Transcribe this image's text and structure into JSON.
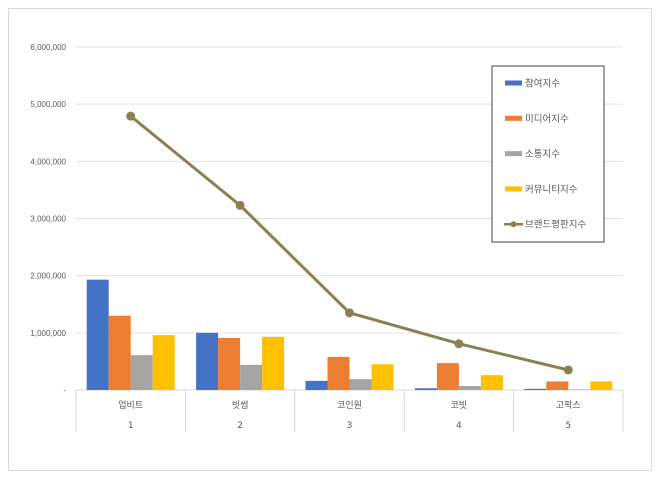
{
  "chart_data": {
    "type": "bar",
    "title": "",
    "xlabel": "",
    "ylabel": "",
    "ylim": [
      0,
      6000000
    ],
    "y_ticks": [
      0,
      1000000,
      2000000,
      3000000,
      4000000,
      5000000,
      6000000
    ],
    "y_tick_labels": [
      "-",
      "1,000,000",
      "2,000,000",
      "3,000,000",
      "4,000,000",
      "5,000,000",
      "6,000,000"
    ],
    "grid": true,
    "legend_position": "right-inset",
    "categories": [
      "업비트",
      "빗썸",
      "코인원",
      "코빗",
      "고팍스"
    ],
    "category_ranks": [
      "1",
      "2",
      "3",
      "4",
      "5"
    ],
    "series": [
      {
        "name": "참여지수",
        "type": "bar",
        "color": "#4472C4",
        "values": [
          1930000,
          1000000,
          160000,
          30000,
          20000
        ]
      },
      {
        "name": "미디어지수",
        "type": "bar",
        "color": "#ED7D31",
        "values": [
          1300000,
          910000,
          580000,
          470000,
          150000
        ]
      },
      {
        "name": "소통지수",
        "type": "bar",
        "color": "#A5A5A5",
        "values": [
          610000,
          440000,
          190000,
          70000,
          10000
        ]
      },
      {
        "name": "커뮤니티지수",
        "type": "bar",
        "color": "#FFC000",
        "values": [
          960000,
          930000,
          450000,
          260000,
          150000
        ]
      },
      {
        "name": "브랜드평판지수",
        "type": "line",
        "color": "#8C8050",
        "values": [
          4790000,
          3230000,
          1350000,
          810000,
          350000
        ]
      }
    ]
  }
}
